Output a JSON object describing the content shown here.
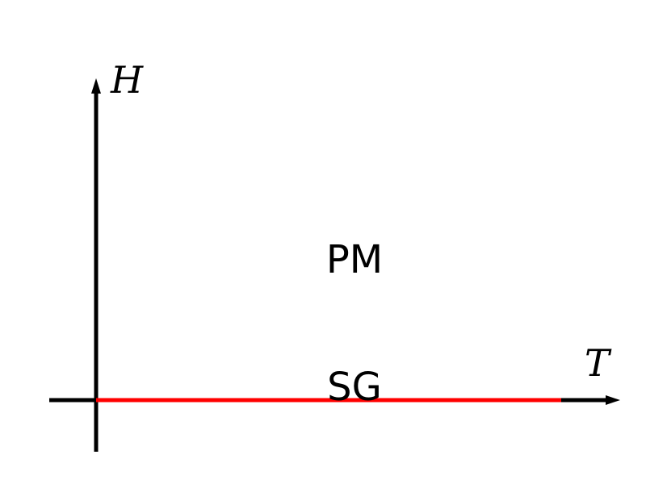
{
  "axes": {
    "x_label": "T",
    "y_label": "H"
  },
  "regions": {
    "upper": "PM",
    "lower": "SG"
  },
  "colors": {
    "axis": "#000000",
    "phase_line": "#ff0000",
    "text": "#000000",
    "background": "#ffffff"
  }
}
